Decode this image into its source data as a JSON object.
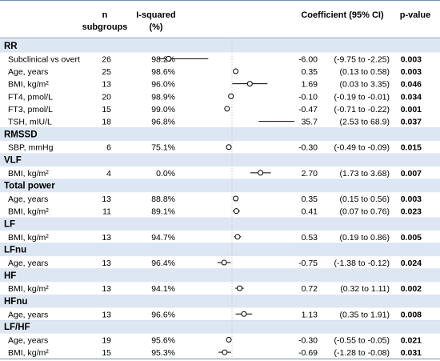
{
  "header": {
    "n_subgroups": "n\nsubgroups",
    "i_squared": "I-squared\n(%)",
    "coefficient": "Coefficient (95% CI)",
    "p_value": "p-value"
  },
  "axis_ticks": [
    "-5",
    "0",
    "5"
  ],
  "colors": {
    "header_band": "#dde7f3",
    "divider": "#6e8fb8",
    "interval": "#000000"
  },
  "chart_data": {
    "type": "forest",
    "xlim": [
      -5,
      5
    ],
    "xticks": [
      -5,
      0,
      5
    ],
    "reference_line": 0,
    "groups": [
      {
        "name": "RR",
        "rows": [
          {
            "label": "Subclinical vs overt",
            "n": "26",
            "i2": "98.2%",
            "coef": -6.0,
            "lo": -9.75,
            "hi": -2.25,
            "coef_text": "-6.00",
            "ci_text": "(-9.75 to -2.25)",
            "p": "0.003"
          },
          {
            "label": "Age, years",
            "n": "25",
            "i2": "98.6%",
            "coef": 0.35,
            "lo": 0.13,
            "hi": 0.58,
            "coef_text": "0.35",
            "ci_text": "(0.13 to 0.58)",
            "p": "0.003"
          },
          {
            "label": "BMI, kg/m²",
            "n": "13",
            "i2": "96.0%",
            "coef": 1.69,
            "lo": 0.03,
            "hi": 3.35,
            "coef_text": "1.69",
            "ci_text": "(0.03 to 3.35)",
            "p": "0.046"
          },
          {
            "label": "FT4, pmol/L",
            "n": "20",
            "i2": "98.9%",
            "coef": -0.1,
            "lo": -0.19,
            "hi": -0.01,
            "coef_text": "-0.10",
            "ci_text": "(-0.19 to -0.01)",
            "p": "0.034"
          },
          {
            "label": "FT3, pmol/L",
            "n": "15",
            "i2": "99.0%",
            "coef": -0.47,
            "lo": -0.71,
            "hi": -0.22,
            "coef_text": "-0.47",
            "ci_text": "(-0.71 to -0.22)",
            "p": "0.001"
          },
          {
            "label": "TSH, mIU/L",
            "n": "18",
            "i2": "96.8%",
            "coef": 35.7,
            "lo": 2.53,
            "hi": 68.9,
            "coef_text": "35.7",
            "ci_text": "(2.53 to 68.9)",
            "p": "0.037"
          }
        ]
      },
      {
        "name": "RMSSD",
        "rows": [
          {
            "label": "SBP, mmHg",
            "n": "6",
            "i2": "75.1%",
            "coef": -0.3,
            "lo": -0.49,
            "hi": -0.09,
            "coef_text": "-0.30",
            "ci_text": "(-0.49 to -0.09)",
            "p": "0.015"
          }
        ]
      },
      {
        "name": "VLF",
        "rows": [
          {
            "label": "BMI, kg/m²",
            "n": "4",
            "i2": "0.0%",
            "coef": 2.7,
            "lo": 1.73,
            "hi": 3.68,
            "coef_text": "2.70",
            "ci_text": "(1.73 to 3.68)",
            "p": "0.007"
          }
        ]
      },
      {
        "name": "Total power",
        "rows": [
          {
            "label": "Age, years",
            "n": "13",
            "i2": "88.8%",
            "coef": 0.35,
            "lo": 0.15,
            "hi": 0.56,
            "coef_text": "0.35",
            "ci_text": "(0.15 to 0.56)",
            "p": "0.003"
          },
          {
            "label": "BMI, kg/m²",
            "n": "11",
            "i2": "89.1%",
            "coef": 0.41,
            "lo": 0.07,
            "hi": 0.76,
            "coef_text": "0.41",
            "ci_text": "(0.07 to 0.76)",
            "p": "0.023"
          }
        ]
      },
      {
        "name": "LF",
        "rows": [
          {
            "label": "BMI, kg/m²",
            "n": "13",
            "i2": "94.7%",
            "coef": 0.53,
            "lo": 0.19,
            "hi": 0.86,
            "coef_text": "0.53",
            "ci_text": "(0.19 to 0.86)",
            "p": "0.005"
          }
        ]
      },
      {
        "name": "LFnu",
        "rows": [
          {
            "label": "Age, years",
            "n": "13",
            "i2": "96.4%",
            "coef": -0.75,
            "lo": -1.38,
            "hi": -0.12,
            "coef_text": "-0.75",
            "ci_text": "(-1.38 to -0.12)",
            "p": "0.024"
          }
        ]
      },
      {
        "name": "HF",
        "rows": [
          {
            "label": "BMI, kg/m²",
            "n": "13",
            "i2": "94.1%",
            "coef": 0.72,
            "lo": 0.32,
            "hi": 1.11,
            "coef_text": "0.72",
            "ci_text": "(0.32 to 1.11)",
            "p": "0.002"
          }
        ]
      },
      {
        "name": "HFnu",
        "rows": [
          {
            "label": "Age, years",
            "n": "13",
            "i2": "96.6%",
            "coef": 1.13,
            "lo": 0.35,
            "hi": 1.91,
            "coef_text": "1.13",
            "ci_text": "(0.35 to 1.91)",
            "p": "0.008"
          }
        ]
      },
      {
        "name": "LF/HF",
        "rows": [
          {
            "label": "Age, years",
            "n": "19",
            "i2": "95.6%",
            "coef": -0.3,
            "lo": -0.55,
            "hi": -0.05,
            "coef_text": "-0.30",
            "ci_text": "(-0.55 to -0.05)",
            "p": "0.021"
          },
          {
            "label": "BMI, kg/m²",
            "n": "15",
            "i2": "95.3%",
            "coef": -0.69,
            "lo": -1.28,
            "hi": -0.08,
            "coef_text": "-0.69",
            "ci_text": "(-1.28 to -0.08)",
            "p": "0.031"
          }
        ]
      }
    ]
  }
}
